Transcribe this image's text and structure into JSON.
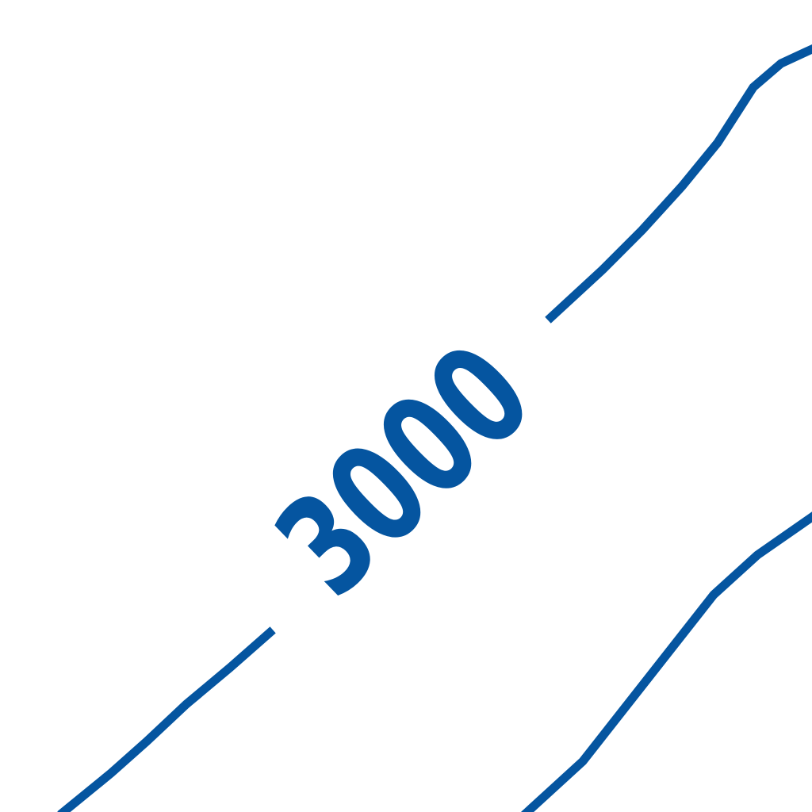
{
  "map": {
    "line_color": "#0555a0",
    "background": "#ffffff",
    "contours": [
      {
        "label": "3000"
      },
      {
        "label": ""
      }
    ]
  }
}
